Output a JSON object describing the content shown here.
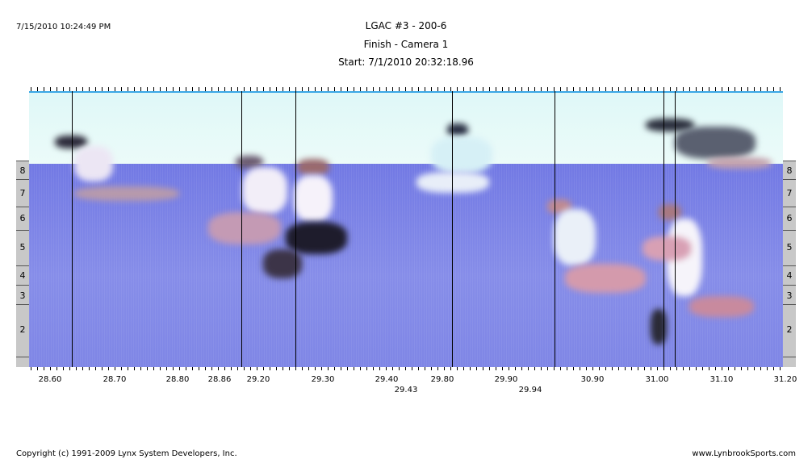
{
  "header": {
    "timestamp": "7/15/2010 10:24:49 PM",
    "title": "LGAC #3 - 200-6",
    "subtitle": "Finish - Camera 1",
    "start": "Start: 7/1/2010 20:32:18.96"
  },
  "lanes": {
    "left": [
      "8",
      "7",
      "6",
      "5",
      "4",
      "3",
      "2"
    ],
    "right": [
      "8",
      "7",
      "6",
      "5",
      "4",
      "3",
      "2"
    ]
  },
  "axis": {
    "labels": [
      "28.60",
      "28.70",
      "28.80",
      "28.86",
      "29.20",
      "29.30",
      "29.40",
      "29.80",
      "29.90",
      "30.90",
      "31.00",
      "31.10",
      "31.20"
    ],
    "sub_labels": [
      "29.43",
      "29.94"
    ]
  },
  "footer": {
    "copyright": "Copyright (c) 1991-2009 Lynx System Developers, Inc.",
    "website": "www.LynbrookSports.com"
  }
}
